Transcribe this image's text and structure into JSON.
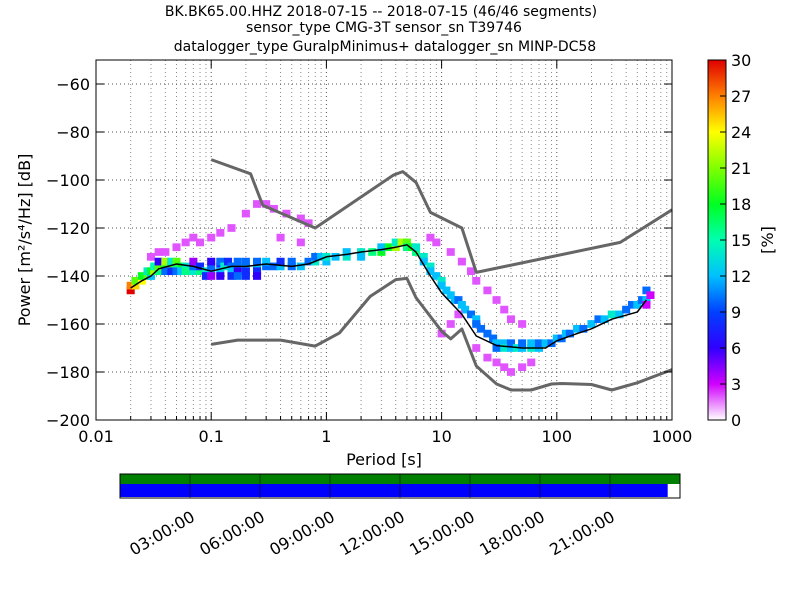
{
  "title_lines": [
    "BK.BK65.00.HHZ   2018-07-15 -- 2018-07-15  (46/46 segments)",
    "sensor_type CMG-3T sensor_sn T39746",
    "datalogger_type GuralpMinimus+ datalogger_sn MINP-DC58"
  ],
  "colors": {
    "noise_model": "#666666",
    "mode_line": "#000000",
    "timeline_green": "#008000",
    "timeline_blue": "#0000ff"
  },
  "colorbar": {
    "label": "[%]",
    "ticks": [
      "0",
      "3",
      "6",
      "9",
      "12",
      "15",
      "18",
      "21",
      "24",
      "27",
      "30"
    ],
    "min": 0,
    "max": 30
  },
  "timeline": {
    "labels": [
      "03:00:00",
      "06:00:00",
      "09:00:00",
      "12:00:00",
      "15:00:00",
      "18:00:00",
      "21:00:00"
    ],
    "coverage_fraction": 0.978
  },
  "chart_data": {
    "type": "heatmap",
    "xlabel": "Period [s]",
    "ylabel": "Power [m²/s⁴/Hz] [dB]",
    "xscale": "log",
    "xlim": [
      0.01,
      1000
    ],
    "ylim": [
      -200,
      -50
    ],
    "x_ticks": [
      0.01,
      0.1,
      1,
      10,
      100,
      1000
    ],
    "x_tick_labels": [
      "0.01",
      "0.1",
      "1",
      "10",
      "100",
      "1000"
    ],
    "y_ticks": [
      -200,
      -180,
      -160,
      -140,
      -120,
      -100,
      -80,
      -60
    ],
    "y_tick_labels": [
      "−200",
      "−180",
      "−160",
      "−140",
      "−120",
      "−100",
      "−80",
      "−60"
    ],
    "grid": "dotted",
    "series": [
      {
        "periods": [
          0.1,
          0.22,
          0.28,
          0.8,
          3.8,
          4.6,
          6,
          8,
          15,
          20,
          354.8,
          1000
        ],
        "values": [
          -91.5,
          -97.4,
          -110.5,
          -120,
          -98,
          -96.5,
          -101,
          -113.5,
          -120,
          -138.5,
          -126,
          -112.4
        ]
      },
      {
        "periods": [
          0.1,
          0.17,
          0.4,
          0.8,
          1.3,
          2.4,
          4,
          5,
          6,
          10,
          12,
          15,
          20,
          30,
          40,
          60,
          90,
          110,
          150,
          200,
          300,
          500,
          1000
        ],
        "values": [
          -168.5,
          -166.7,
          -166.7,
          -169.2,
          -163.7,
          -148.5,
          -141.5,
          -141,
          -149,
          -163,
          -166.2,
          -162.1,
          -177.5,
          -185,
          -187.5,
          -187.5,
          -185,
          -184.8,
          -185,
          -185.2,
          -187.5,
          -184.5,
          -179
        ]
      },
      {
        "periods": [
          0.02,
          0.025,
          0.03,
          0.035,
          0.05,
          0.07,
          0.1,
          0.15,
          0.2,
          0.3,
          0.5,
          0.7,
          1,
          1.5,
          2,
          3,
          4,
          5,
          6,
          8,
          10,
          15,
          20,
          30,
          50,
          80,
          100,
          150,
          200,
          300,
          500,
          600
        ],
        "values": [
          -145,
          -142,
          -140,
          -137,
          -135,
          -136,
          -138,
          -136,
          -136,
          -135,
          -136,
          -135,
          -132,
          -131,
          -130,
          -129,
          -128,
          -127,
          -130,
          -140,
          -147,
          -156,
          -165,
          -169,
          -170,
          -170,
          -167,
          -164,
          -162,
          -158,
          -155,
          -150
        ]
      }
    ],
    "pdf_samples": [
      [
        0.02,
        -146,
        30
      ],
      [
        0.02,
        -144,
        27
      ],
      [
        0.022,
        -144,
        25
      ],
      [
        0.022,
        -142,
        20
      ],
      [
        0.025,
        -142,
        24
      ],
      [
        0.025,
        -140,
        18
      ],
      [
        0.028,
        -140,
        20
      ],
      [
        0.028,
        -138,
        14
      ],
      [
        0.03,
        -140,
        12
      ],
      [
        0.03,
        -138,
        18
      ],
      [
        0.03,
        -132,
        2
      ],
      [
        0.032,
        -138,
        22
      ],
      [
        0.032,
        -136,
        15
      ],
      [
        0.035,
        -138,
        16
      ],
      [
        0.035,
        -136,
        20
      ],
      [
        0.035,
        -134,
        6
      ],
      [
        0.035,
        -130,
        2
      ],
      [
        0.04,
        -136,
        18
      ],
      [
        0.04,
        -134,
        22
      ],
      [
        0.04,
        -138,
        10
      ],
      [
        0.04,
        -130,
        2
      ],
      [
        0.045,
        -136,
        20
      ],
      [
        0.045,
        -134,
        14
      ],
      [
        0.045,
        -138,
        8
      ],
      [
        0.05,
        -136,
        16
      ],
      [
        0.05,
        -134,
        20
      ],
      [
        0.05,
        -138,
        10
      ],
      [
        0.05,
        -128,
        2
      ],
      [
        0.055,
        -136,
        18
      ],
      [
        0.055,
        -138,
        12
      ],
      [
        0.06,
        -136,
        14
      ],
      [
        0.06,
        -138,
        16
      ],
      [
        0.06,
        -126,
        2
      ],
      [
        0.07,
        -138,
        14
      ],
      [
        0.07,
        -136,
        10
      ],
      [
        0.07,
        -134,
        4
      ],
      [
        0.07,
        -124,
        2
      ],
      [
        0.08,
        -138,
        16
      ],
      [
        0.08,
        -136,
        8
      ],
      [
        0.09,
        -138,
        14
      ],
      [
        0.09,
        -140,
        8
      ],
      [
        0.1,
        -138,
        12
      ],
      [
        0.1,
        -136,
        10
      ],
      [
        0.1,
        -134,
        6
      ],
      [
        0.1,
        -140,
        4
      ],
      [
        0.12,
        -136,
        8
      ],
      [
        0.12,
        -134,
        10
      ],
      [
        0.12,
        -138,
        12
      ],
      [
        0.12,
        -140,
        6
      ],
      [
        0.13,
        -136,
        14
      ],
      [
        0.14,
        -134,
        8
      ],
      [
        0.15,
        -136,
        10
      ],
      [
        0.15,
        -138,
        12
      ],
      [
        0.15,
        -140,
        8
      ],
      [
        0.17,
        -136,
        12
      ],
      [
        0.17,
        -134,
        10
      ],
      [
        0.17,
        -138,
        6
      ],
      [
        0.17,
        -140,
        10
      ],
      [
        0.2,
        -136,
        14
      ],
      [
        0.2,
        -134,
        10
      ],
      [
        0.2,
        -138,
        8
      ],
      [
        0.2,
        -140,
        8
      ],
      [
        0.25,
        -136,
        12
      ],
      [
        0.25,
        -134,
        10
      ],
      [
        0.25,
        -138,
        8
      ],
      [
        0.25,
        -140,
        6
      ],
      [
        0.3,
        -136,
        10
      ],
      [
        0.3,
        -134,
        12
      ],
      [
        0.35,
        -136,
        10
      ],
      [
        0.4,
        -136,
        12
      ],
      [
        0.4,
        -134,
        8
      ],
      [
        0.5,
        -136,
        10
      ],
      [
        0.5,
        -134,
        10
      ],
      [
        0.6,
        -136,
        12
      ],
      [
        0.7,
        -134,
        10
      ],
      [
        0.8,
        -134,
        14
      ],
      [
        0.8,
        -132,
        10
      ],
      [
        0.9,
        -132,
        12
      ],
      [
        1,
        -134,
        12
      ],
      [
        1,
        -132,
        14
      ],
      [
        1.2,
        -132,
        12
      ],
      [
        1.5,
        -132,
        14
      ],
      [
        1.5,
        -130,
        12
      ],
      [
        2,
        -130,
        14
      ],
      [
        2,
        -132,
        12
      ],
      [
        2.5,
        -130,
        16
      ],
      [
        3,
        -130,
        18
      ],
      [
        3,
        -128,
        12
      ],
      [
        3.5,
        -128,
        18
      ],
      [
        4,
        -128,
        22
      ],
      [
        4,
        -126,
        14
      ],
      [
        4.5,
        -126,
        22
      ],
      [
        5,
        -126,
        20
      ],
      [
        5,
        -128,
        16
      ],
      [
        5.5,
        -128,
        18
      ],
      [
        6,
        -130,
        16
      ],
      [
        6,
        -128,
        14
      ],
      [
        7,
        -132,
        14
      ],
      [
        7,
        -134,
        12
      ],
      [
        8,
        -136,
        14
      ],
      [
        8,
        -138,
        12
      ],
      [
        9,
        -140,
        12
      ],
      [
        10,
        -142,
        14
      ],
      [
        10,
        -144,
        12
      ],
      [
        11,
        -146,
        12
      ],
      [
        12,
        -148,
        12
      ],
      [
        13,
        -150,
        12
      ],
      [
        14,
        -150,
        10
      ],
      [
        15,
        -152,
        12
      ],
      [
        16,
        -154,
        12
      ],
      [
        18,
        -156,
        10
      ],
      [
        20,
        -158,
        12
      ],
      [
        20,
        -160,
        10
      ],
      [
        22,
        -162,
        10
      ],
      [
        25,
        -164,
        10
      ],
      [
        28,
        -166,
        10
      ],
      [
        30,
        -168,
        12
      ],
      [
        30,
        -170,
        10
      ],
      [
        35,
        -168,
        12
      ],
      [
        35,
        -170,
        14
      ],
      [
        40,
        -170,
        12
      ],
      [
        40,
        -168,
        10
      ],
      [
        45,
        -170,
        14
      ],
      [
        50,
        -170,
        12
      ],
      [
        50,
        -168,
        10
      ],
      [
        60,
        -170,
        14
      ],
      [
        60,
        -168,
        12
      ],
      [
        70,
        -170,
        12
      ],
      [
        70,
        -168,
        10
      ],
      [
        80,
        -168,
        12
      ],
      [
        90,
        -168,
        10
      ],
      [
        100,
        -166,
        12
      ],
      [
        110,
        -166,
        10
      ],
      [
        120,
        -164,
        12
      ],
      [
        130,
        -164,
        10
      ],
      [
        150,
        -162,
        12
      ],
      [
        170,
        -162,
        10
      ],
      [
        200,
        -160,
        12
      ],
      [
        230,
        -158,
        10
      ],
      [
        260,
        -158,
        12
      ],
      [
        300,
        -156,
        14
      ],
      [
        350,
        -156,
        12
      ],
      [
        400,
        -154,
        10
      ],
      [
        450,
        -152,
        10
      ],
      [
        500,
        -152,
        12
      ],
      [
        550,
        -150,
        10
      ],
      [
        600,
        -150,
        12
      ],
      [
        600,
        -146,
        10
      ],
      [
        0.4,
        -124,
        2
      ],
      [
        0.6,
        -126,
        2
      ],
      [
        0.2,
        -114,
        2
      ],
      [
        0.25,
        -110,
        2
      ],
      [
        0.3,
        -110,
        2
      ],
      [
        0.35,
        -112,
        2
      ],
      [
        0.45,
        -114,
        2
      ],
      [
        0.6,
        -116,
        2
      ],
      [
        0.7,
        -118,
        2
      ],
      [
        0.15,
        -120,
        2
      ],
      [
        0.12,
        -122,
        2
      ],
      [
        0.1,
        -124,
        2
      ],
      [
        0.08,
        -126,
        2
      ],
      [
        8,
        -124,
        2
      ],
      [
        9,
        -126,
        2
      ],
      [
        12,
        -130,
        2
      ],
      [
        15,
        -134,
        2
      ],
      [
        18,
        -138,
        2
      ],
      [
        20,
        -142,
        2
      ],
      [
        25,
        -146,
        2
      ],
      [
        30,
        -150,
        2
      ],
      [
        35,
        -154,
        2
      ],
      [
        40,
        -158,
        2
      ],
      [
        50,
        -160,
        2
      ],
      [
        20,
        -170,
        2
      ],
      [
        25,
        -174,
        2
      ],
      [
        30,
        -176,
        2
      ],
      [
        35,
        -178,
        2
      ],
      [
        40,
        -180,
        2
      ],
      [
        50,
        -178,
        2
      ],
      [
        60,
        -176,
        2
      ],
      [
        10,
        -164,
        2
      ],
      [
        12,
        -160,
        2
      ],
      [
        14,
        -156,
        2
      ],
      [
        600,
        -152,
        3
      ],
      [
        650,
        -148,
        3
      ]
    ]
  }
}
